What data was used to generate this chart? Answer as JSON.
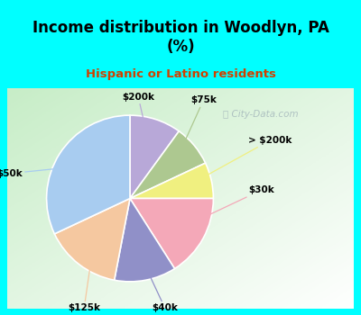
{
  "title": "Income distribution in Woodlyn, PA\n(%)",
  "subtitle": "Hispanic or Latino residents",
  "bg_cyan": "#00FFFF",
  "labels": [
    "$200k",
    "$75k",
    "> $200k",
    "$30k",
    "$40k",
    "$125k",
    "$50k"
  ],
  "values": [
    10,
    8,
    7,
    16,
    12,
    15,
    32
  ],
  "colors": [
    "#b8a8d8",
    "#adc890",
    "#f0f080",
    "#f4a8b8",
    "#9090c8",
    "#f5c8a0",
    "#a8ccf0"
  ],
  "startangle": 90,
  "watermark": "City-Data.com",
  "subtitle_color": "#d04000",
  "label_fontsize": 7.5,
  "title_fontsize": 12
}
